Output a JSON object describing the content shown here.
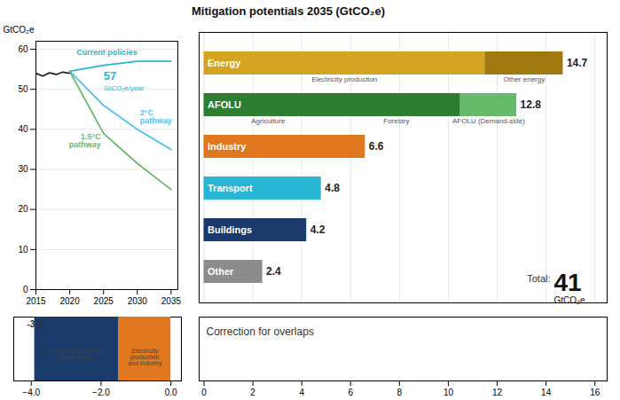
{
  "chart_data": [
    {
      "type": "line",
      "ylabel": "GtCO₂e",
      "x": [
        2015,
        2016,
        2017,
        2018,
        2019,
        2020,
        2025,
        2030,
        2035
      ],
      "series": [
        {
          "color": "#222222",
          "values": [
            54.0,
            53.3,
            54.1,
            53.7,
            54.3,
            54.0,
            null,
            null,
            null
          ]
        },
        {
          "name": "Current policies",
          "color": "#29b6d4",
          "values": [
            null,
            null,
            null,
            null,
            null,
            54.5,
            56.0,
            57.0,
            57.0
          ]
        },
        {
          "name": "2°C\npathway",
          "color": "#4fc3f7",
          "values": [
            null,
            null,
            null,
            null,
            null,
            54.5,
            46.0,
            40.0,
            35.0
          ]
        },
        {
          "name": "1.5°C\npathway",
          "color": "#66bb6a",
          "values": [
            null,
            null,
            null,
            null,
            null,
            54.5,
            39.0,
            31.5,
            25.0
          ]
        }
      ],
      "annotations": [
        "57",
        "GtCO₂e/year"
      ],
      "xlim": [
        2015,
        2036
      ],
      "xticks": [
        2015,
        2020,
        2025,
        2030,
        2035
      ],
      "ylim": [
        0,
        62
      ],
      "yticks": [
        0,
        10,
        20,
        30,
        40,
        50,
        60
      ],
      "grid": true
    },
    {
      "type": "bar",
      "orientation": "horizontal",
      "stacked": true,
      "title": "Mitigation potentials 2035 (GtCO₂e)",
      "categories": [
        "Energy",
        "AFOLU",
        "Industry",
        "Transport",
        "Buildings",
        "Other"
      ],
      "series": [
        {
          "colors": [
            "#d4a420",
            "#2e7d32",
            "#e07820",
            "#29b6d4",
            "#1a3a6b",
            "#8c8c8c"
          ],
          "values": [
            11.5,
            10.5,
            6.6,
            4.8,
            4.2,
            2.4
          ],
          "segment_labels": [
            [
              "Electricity production"
            ],
            [
              "Agriculture",
              "Forestry"
            ],
            null,
            null,
            null,
            null
          ]
        },
        {
          "colors": [
            "#a07810",
            "#66bb6a",
            null,
            null,
            null,
            null
          ],
          "values": [
            3.2,
            2.3,
            null,
            null,
            null,
            null
          ],
          "segment_labels": [
            [
              "Other energy"
            ],
            [
              "AFOLU (Demand-side)"
            ],
            null,
            null,
            null,
            null
          ]
        }
      ],
      "totals": [
        14.7,
        12.8,
        6.6,
        4.8,
        4.2,
        2.4
      ],
      "data_labels": true,
      "total_label": "Total:",
      "total": 41,
      "total_unit": "GtCO₂e",
      "xlim": [
        -0.2,
        16.5
      ],
      "xticks": [
        0,
        2,
        4,
        6,
        8,
        10,
        12,
        14,
        16
      ],
      "grid": true,
      "tick_labels": false
    },
    {
      "type": "bar",
      "orientation": "horizontal",
      "stacked": true,
      "series": [
        {
          "name": "Electricity\nproduction\nand industry",
          "color": "#e07820",
          "values": [
            -1.5
          ]
        },
        {
          "name": "Electricity production\nand buildings",
          "color": "#1a3a6b",
          "values": [
            -2.4
          ]
        }
      ],
      "annotations": [
        "-3.9"
      ],
      "xlim": [
        -4.5,
        0.3
      ],
      "xticks": [
        -4,
        -2,
        0
      ]
    },
    {
      "type": "text",
      "text": "Correction for overlaps",
      "xlim": [
        -0.2,
        16.5
      ],
      "xticks": [
        0,
        2,
        4,
        6,
        8,
        10,
        12,
        14,
        16
      ]
    }
  ]
}
